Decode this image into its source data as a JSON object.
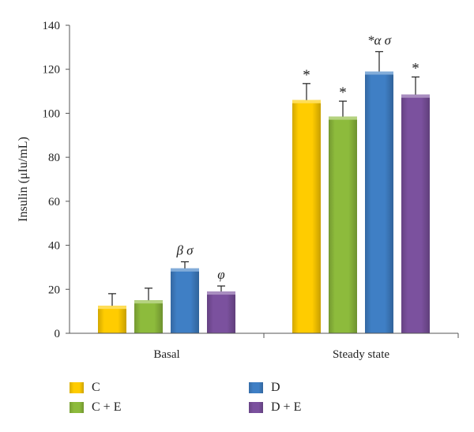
{
  "chart_data": {
    "type": "bar",
    "ylabel": "Insulin (μIu/mL)",
    "ylim": [
      0,
      140
    ],
    "yticks": [
      0,
      20,
      40,
      60,
      80,
      100,
      120,
      140
    ],
    "categories": [
      "Basal",
      "Steady state"
    ],
    "grid": false,
    "legend_position": "bottom",
    "series": [
      {
        "name": "C",
        "color": "#FFCC00",
        "values": [
          12.5,
          106
        ],
        "errors": [
          5.5,
          7.5
        ],
        "annotations": [
          "",
          "*"
        ]
      },
      {
        "name": "C + E",
        "color": "#8DBB3C",
        "values": [
          15,
          98.5
        ],
        "errors": [
          5.5,
          7
        ],
        "annotations": [
          "",
          "*"
        ]
      },
      {
        "name": "D",
        "color": "#3F7FC5",
        "values": [
          29.5,
          119
        ],
        "errors": [
          3,
          9
        ],
        "annotations": [
          "β σ",
          "*α σ"
        ]
      },
      {
        "name": "D + E",
        "color": "#7B519E",
        "values": [
          19,
          108.5
        ],
        "errors": [
          2.5,
          8
        ],
        "annotations": [
          "φ",
          "*"
        ]
      }
    ]
  }
}
